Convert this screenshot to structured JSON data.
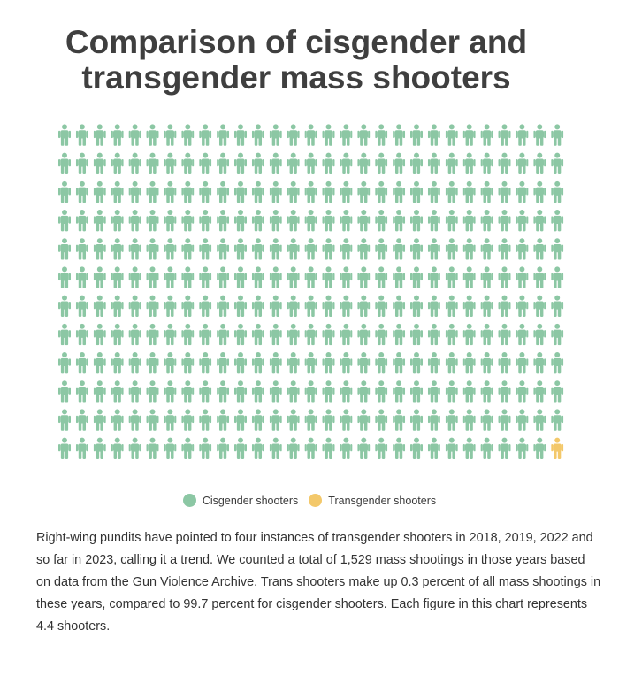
{
  "title_line1": "Comparison of cisgender and",
  "title_line2": "transgender mass shooters",
  "legend": [
    {
      "label": "Cisgender shooters",
      "color": "#8cc7a4"
    },
    {
      "label": "Transgender shooters",
      "color": "#f3c86a"
    }
  ],
  "description": {
    "part1": "Right-wing pundits have pointed to four instances of transgender shooters in 2018, 2019, 2022 and so far in 2023, calling it a trend. We counted a total of 1,529 mass shootings in those years based on data from the ",
    "link_text": "Gun Violence Archive",
    "part2": ". Trans shooters make up 0.3 percent of all mass shootings in these years, compared to 99.7 percent for cisgender shooters. Each figure in this chart represents 4.4 shooters."
  },
  "chart_data": {
    "type": "pictogram",
    "rows": 12,
    "columns": 29,
    "units_per_figure": 4.4,
    "series": [
      {
        "name": "Cisgender shooters",
        "count": 347,
        "percent": 99.7,
        "color": "#8cc7a4"
      },
      {
        "name": "Transgender shooters",
        "count": 1,
        "percent": 0.3,
        "color": "#f3c86a"
      }
    ]
  }
}
